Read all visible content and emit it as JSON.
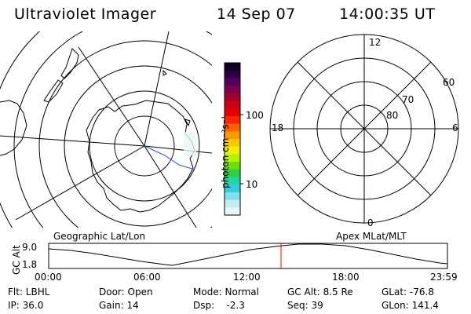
{
  "header": {
    "instrument": "Ultraviolet Imager",
    "date": "14 Sep 07",
    "time": "14:00:35 UT"
  },
  "colorbar": {
    "unit_label": "photon cm⁻²s⁻¹",
    "ticks": [
      "100",
      "10"
    ],
    "colors": [
      "#100020",
      "#2a0040",
      "#500060",
      "#7a0050",
      "#a00030",
      "#c80018",
      "#e40000",
      "#ff2000",
      "#ff6000",
      "#ff9800",
      "#ffc800",
      "#f0f000",
      "#b8f000",
      "#70e000",
      "#30d040",
      "#20d8a0",
      "#30d0e0",
      "#80e0f0",
      "#c0ecf4",
      "#e8f6f8"
    ]
  },
  "left_map": {
    "label": "Geographic Lat/Lon"
  },
  "right_map": {
    "label": "Apex  MLat/MLT",
    "mlt_labels": {
      "top": "12",
      "left": "18",
      "right": "6",
      "bottom": "0"
    },
    "lat_labels": [
      "60",
      "70",
      "80"
    ]
  },
  "altitude_plot": {
    "ylabel": "GC Alt",
    "yticks": [
      "9.0",
      "1.8"
    ],
    "xticks": [
      "00:00",
      "06:00",
      "12:00",
      "18:00",
      "23:59"
    ],
    "marker_time": "14:00:35"
  },
  "status": {
    "row1": {
      "flt": "Flt: LBHL",
      "door": "Door: Open",
      "mode": "Mode: Normal",
      "gc_alt": "GC Alt: 8.5 Re",
      "glat": "GLat: -76.8"
    },
    "row2": {
      "ip": "IP: 36.0",
      "gain": "Gain: 14",
      "dsp": "Dsp:    -2.3",
      "seq": "Seq: 39",
      "glon": "GLon: 141.4"
    }
  }
}
